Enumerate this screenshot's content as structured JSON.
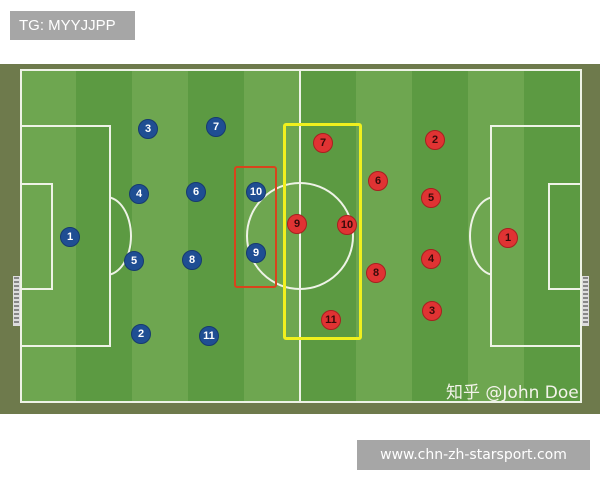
{
  "top_tag": "TG: MYYJJPP",
  "site_label": "www.chn-zh-starsport.com",
  "watermark": "知乎 @John Doe",
  "colors": {
    "blue_team": "#1f4e93",
    "red_team": "#e03333",
    "highlight_red": "#d9441c",
    "highlight_yellow": "#f0f01e",
    "pitch": "#5c9a42"
  },
  "blue_team": [
    "1",
    "3",
    "7",
    "4",
    "6",
    "10",
    "5",
    "8",
    "9",
    "2",
    "11"
  ],
  "red_team": [
    "7",
    "2",
    "6",
    "5",
    "9",
    "10",
    "1",
    "8",
    "4",
    "3",
    "11"
  ]
}
